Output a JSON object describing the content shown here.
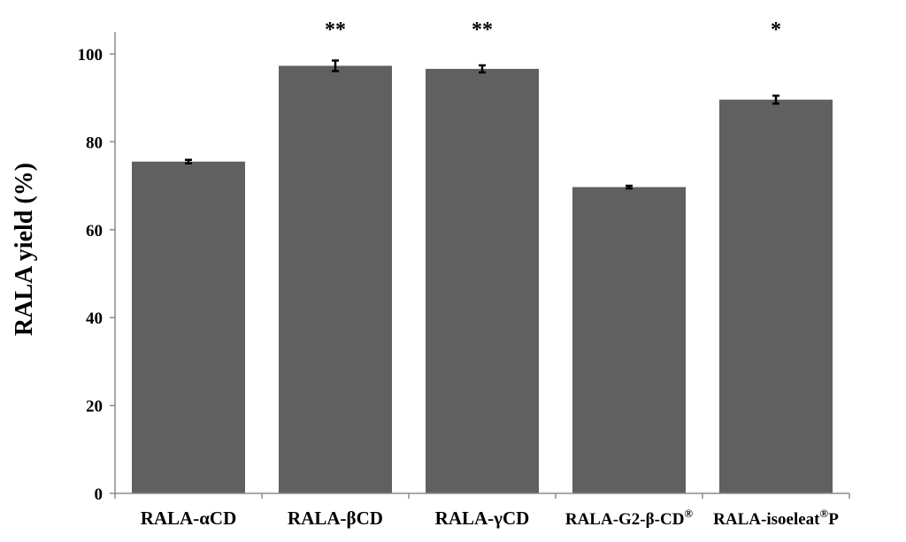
{
  "chart_data": {
    "type": "bar",
    "ylabel": "RALA yield (%)",
    "xlabel": "",
    "ylim": [
      0,
      105
    ],
    "yticks": [
      0,
      20,
      40,
      60,
      80,
      100
    ],
    "grid": false,
    "colors": {
      "bar": "#606060",
      "axis": "#8c8c8c",
      "text": "#000000"
    },
    "categories": [
      {
        "base": "RALA-αCD",
        "sup": "",
        "tail": ""
      },
      {
        "base": "RALA-βCD",
        "sup": "",
        "tail": ""
      },
      {
        "base": "RALA-γCD",
        "sup": "",
        "tail": ""
      },
      {
        "base": "RALA-G2-β-CD",
        "sup": "®",
        "tail": ""
      },
      {
        "base": "RALA-isoeleat",
        "sup": "®",
        "tail": "P"
      }
    ],
    "values": [
      75.5,
      97.3,
      96.6,
      69.7,
      89.6
    ],
    "errors": [
      0.4,
      1.2,
      0.8,
      0.3,
      0.9
    ],
    "significance": [
      "",
      "**",
      "**",
      "",
      "*"
    ]
  }
}
